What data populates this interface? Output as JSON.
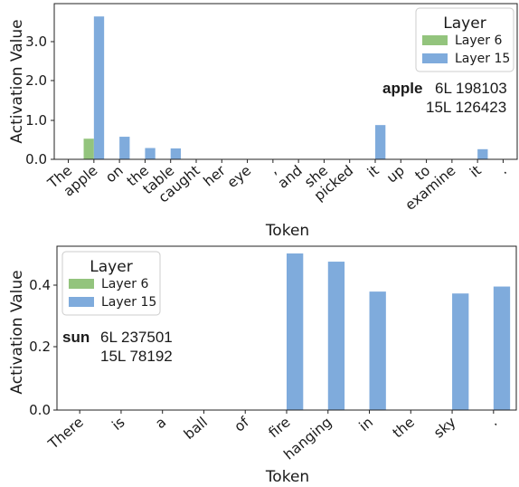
{
  "chart_data": [
    {
      "type": "bar",
      "xlabel": "Token",
      "ylabel": "Activation Value",
      "ylim": [
        0,
        4.0
      ],
      "yticks": [
        0.0,
        1.0,
        2.0,
        3.0
      ],
      "ytick_labels": [
        "0.0",
        "1.0",
        "2.0",
        "3.0"
      ],
      "categories": [
        "The",
        "apple",
        "on",
        "the",
        "table",
        "caught",
        "her",
        "eye",
        ",",
        "and",
        "she",
        "picked",
        "it",
        "up",
        "to",
        "examine",
        "it",
        "."
      ],
      "series": [
        {
          "name": "Layer 6",
          "color": "#93c47d",
          "values": [
            0,
            0.53,
            0,
            0,
            0,
            0,
            0,
            0,
            0,
            0,
            0,
            0,
            0,
            0,
            0,
            0,
            0,
            0
          ]
        },
        {
          "name": "Layer 15",
          "color": "#7fabdc",
          "values": [
            0,
            3.67,
            0.58,
            0.29,
            0.28,
            0,
            0,
            0,
            0,
            0,
            0,
            0,
            0.88,
            0,
            0,
            0,
            0.26,
            0
          ]
        }
      ],
      "legend": {
        "title": "Layer",
        "placement": "top-right"
      },
      "annotation": {
        "word": "apple",
        "line1": "6L 198103",
        "line2": "15L 126423"
      }
    },
    {
      "type": "bar",
      "xlabel": "Token",
      "ylabel": "Activation Value",
      "ylim": [
        0,
        0.52
      ],
      "yticks": [
        0.0,
        0.2,
        0.4
      ],
      "ytick_labels": [
        "0.0",
        "0.2",
        "0.4"
      ],
      "categories": [
        "There",
        "is",
        "a",
        "ball",
        "of",
        "fire",
        "hanging",
        "in",
        "the",
        "sky",
        "."
      ],
      "series": [
        {
          "name": "Layer 6",
          "color": "#93c47d",
          "values": [
            0,
            0,
            0,
            0,
            0,
            0,
            0,
            0,
            0,
            0,
            0
          ]
        },
        {
          "name": "Layer 15",
          "color": "#7fabdc",
          "values": [
            0,
            0,
            0,
            0,
            0,
            0.497,
            0.471,
            0.376,
            0,
            0.37,
            0.392
          ]
        }
      ],
      "legend": {
        "title": "Layer",
        "placement": "top-left"
      },
      "annotation": {
        "word": "sun",
        "line1": "6L 237501",
        "line2": "15L 78192"
      }
    }
  ]
}
